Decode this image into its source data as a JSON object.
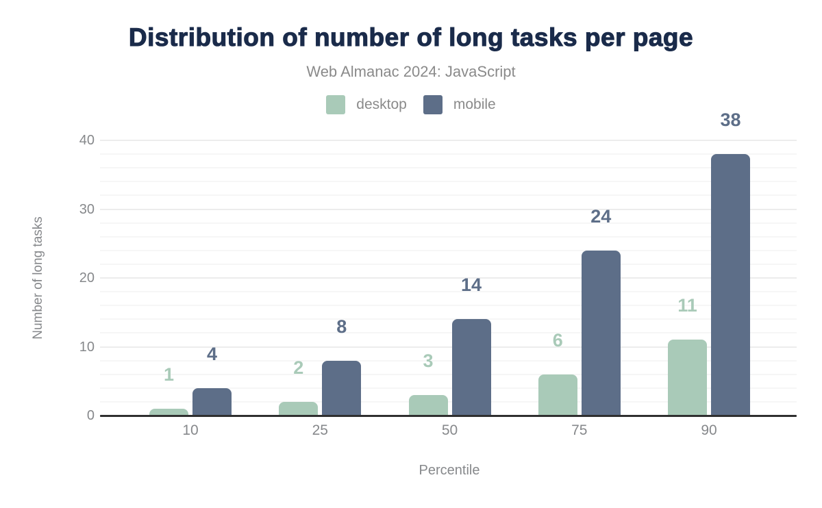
{
  "header": {
    "title": "Distribution of number of long tasks per page",
    "subtitle": "Web Almanac 2024: JavaScript"
  },
  "chart_data": {
    "type": "bar",
    "title": "Distribution of number of long tasks per page",
    "subtitle": "Web Almanac 2024: JavaScript",
    "categories": [
      "10",
      "25",
      "50",
      "75",
      "90"
    ],
    "series": [
      {
        "name": "desktop",
        "color": "#a9cab8",
        "values": [
          1,
          2,
          3,
          6,
          11
        ]
      },
      {
        "name": "mobile",
        "color": "#5d6e88",
        "values": [
          4,
          8,
          14,
          24,
          38
        ]
      }
    ],
    "xlabel": "Percentile",
    "ylabel": "Number of long tasks",
    "ylim": [
      0,
      40
    ],
    "yticks": [
      0,
      10,
      20,
      30,
      40
    ],
    "grid": {
      "orientation": "horizontal",
      "minor_step": 2,
      "major_step": 10
    },
    "legend_position": "top",
    "data_labels": true
  },
  "colors": {
    "title": "#1a2b4a",
    "subtitle": "#8a8a8a",
    "axis_text": "#86888b",
    "axis_line": "#2f2f2f",
    "grid_minor": "#f6f6f6",
    "grid_major": "#ececec",
    "background": "#ffffff",
    "desktop": "#a9cab8",
    "mobile": "#5d6e88"
  }
}
